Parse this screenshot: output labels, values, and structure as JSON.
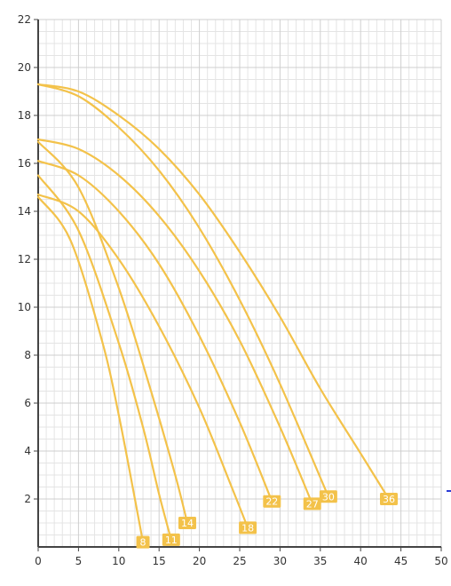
{
  "chart_data": {
    "type": "line",
    "title": "",
    "xlabel": "",
    "ylabel": "",
    "xlim": [
      0,
      50
    ],
    "ylim": [
      0,
      22
    ],
    "xticks": [
      0,
      5,
      10,
      15,
      20,
      25,
      30,
      35,
      40,
      45,
      50
    ],
    "yticks": [
      2,
      4,
      6,
      8,
      10,
      12,
      14,
      16,
      18,
      20,
      22
    ],
    "grid": true,
    "line_color": "#F3C24A",
    "label_bg": "#F3C24A",
    "grid_color": "#CFCFCF",
    "axis_color": "#444444",
    "series": [
      {
        "label": "8",
        "x": [
          0,
          4,
          8,
          10,
          12,
          13.0
        ],
        "y": [
          14.6,
          12.8,
          8.5,
          5.5,
          2.0,
          0.2
        ]
      },
      {
        "label": "11",
        "x": [
          0,
          5,
          10,
          13,
          15,
          16.5
        ],
        "y": [
          15.5,
          13.2,
          8.5,
          5.0,
          2.2,
          0.3
        ]
      },
      {
        "label": "14",
        "x": [
          0,
          5,
          10,
          14,
          17,
          18.5
        ],
        "y": [
          16.9,
          15.0,
          10.8,
          6.5,
          3.0,
          1.0
        ]
      },
      {
        "label": "18",
        "x": [
          0,
          5,
          10,
          15,
          20,
          24,
          26.0
        ],
        "y": [
          14.7,
          14.0,
          12.0,
          9.2,
          5.8,
          2.5,
          0.8
        ]
      },
      {
        "label": "22",
        "x": [
          0,
          5,
          10,
          15,
          20,
          25,
          29.0
        ],
        "y": [
          16.1,
          15.5,
          14.0,
          11.8,
          8.8,
          5.2,
          1.9
        ]
      },
      {
        "label": "27",
        "x": [
          0,
          5,
          10,
          15,
          20,
          25,
          30,
          34.0
        ],
        "y": [
          17.0,
          16.6,
          15.5,
          13.8,
          11.5,
          8.6,
          5.0,
          1.8
        ]
      },
      {
        "label": "30",
        "x": [
          0,
          5,
          10,
          15,
          20,
          25,
          30,
          36.0
        ],
        "y": [
          19.3,
          18.8,
          17.5,
          15.7,
          13.3,
          10.3,
          6.8,
          2.1
        ]
      },
      {
        "label": "36",
        "x": [
          0,
          5,
          10,
          15,
          20,
          25,
          30,
          35,
          40,
          43.5
        ],
        "y": [
          19.3,
          19.0,
          18.0,
          16.6,
          14.7,
          12.3,
          9.6,
          6.6,
          3.9,
          2.0
        ]
      }
    ]
  }
}
